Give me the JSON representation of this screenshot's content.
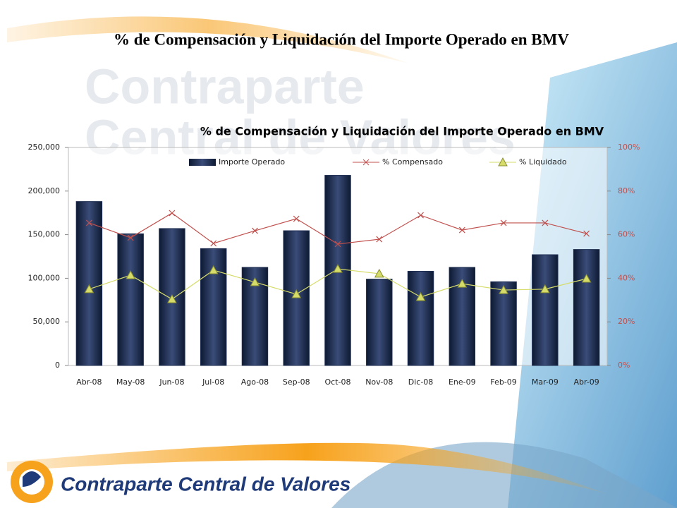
{
  "slide_title": "% de Compensación y Liquidación del Importe Operado en BMV",
  "watermark": [
    "Contraparte",
    "Central de Valores"
  ],
  "footer": "Contraparte Central de Valores",
  "chart_data": {
    "type": "bar",
    "title": "% de Compensación y Liquidación del Importe Operado en BMV",
    "categories": [
      "Abr-08",
      "May-08",
      "Jun-08",
      "Jul-08",
      "Ago-08",
      "Sep-08",
      "Oct-08",
      "Nov-08",
      "Dic-08",
      "Ene-09",
      "Feb-09",
      "Mar-09",
      "Abr-09"
    ],
    "series": [
      {
        "name": "Importe Operado",
        "type": "bar",
        "color": "#1c2b4f",
        "values": [
          188000,
          151000,
          157000,
          134000,
          112500,
          154500,
          218000,
          99000,
          108000,
          112500,
          96000,
          127000,
          133000
        ]
      },
      {
        "name": "% Compensado",
        "type": "line",
        "marker": "x",
        "axis": "y2",
        "color": "#c0504d",
        "values": [
          65.4,
          58.6,
          69.9,
          56,
          61.8,
          67.3,
          55.7,
          57.9,
          68.9,
          62.1,
          65.4,
          65.4,
          60.5
        ]
      },
      {
        "name": "% Liquidado",
        "type": "line",
        "marker": "triangle",
        "axis": "y2",
        "color": "#d6dc6a",
        "values": [
          35,
          41.4,
          30.4,
          43.7,
          38.2,
          32.7,
          44.3,
          42.1,
          31.4,
          37.5,
          34.6,
          35,
          39.8
        ]
      }
    ],
    "ylim": [
      0,
      250000
    ],
    "yticks": [
      0,
      {
        "value": 50000,
        "label": "50,000"
      },
      {
        "value": 100000,
        "label": "100,000"
      },
      {
        "value": 150000,
        "label": "150,000"
      },
      {
        "value": 200000,
        "label": "200,000"
      },
      {
        "value": 250000,
        "label": "250,000"
      }
    ],
    "y2lim": [
      0,
      100
    ],
    "y2ticks": [
      {
        "value": 0,
        "label": "0%"
      },
      {
        "value": 20,
        "label": "20%"
      },
      {
        "value": 40,
        "label": "40%"
      },
      {
        "value": 60,
        "label": "60%"
      },
      {
        "value": 80,
        "label": "80%"
      },
      {
        "value": 100,
        "label": "100%"
      }
    ],
    "legend": "top"
  }
}
